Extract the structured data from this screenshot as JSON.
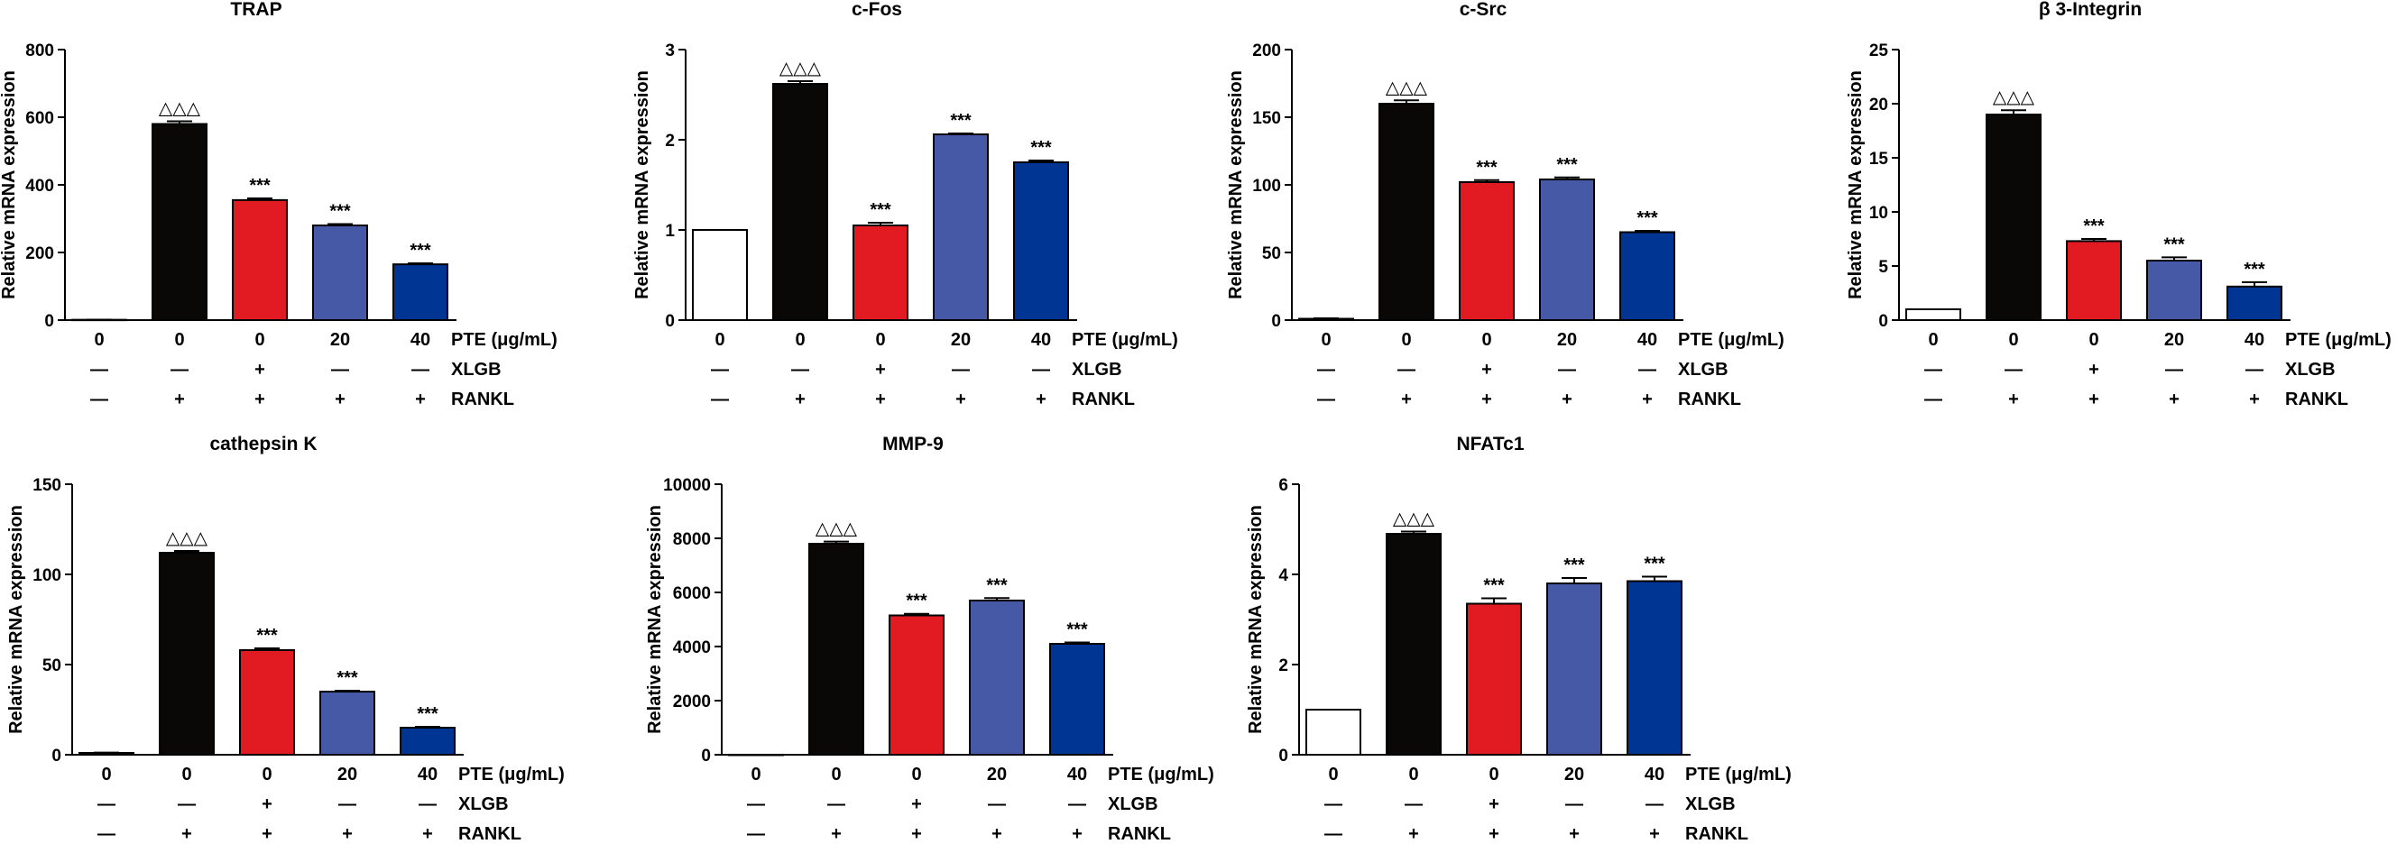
{
  "figure": {
    "description_free": true,
    "colors": {
      "control": "#ffffff",
      "rankl": "#0a0707",
      "xlgb": "#e21b23",
      "pte20": "#4659a6",
      "pte40": "#003594",
      "axis": "#000000"
    }
  },
  "chart_data": [
    {
      "type": "bar",
      "title": "TRAP",
      "ylabel": "Relative mRNA expression",
      "ylim": [
        0,
        800
      ],
      "yticks": [
        0,
        200,
        400,
        600,
        800
      ],
      "ytick_labels": [
        "0",
        "200",
        "400",
        "600",
        "800"
      ],
      "series": [
        {
          "name": "Relative mRNA expression",
          "values": [
            1,
            580,
            355,
            280,
            165
          ],
          "errors": [
            0.5,
            8,
            5,
            4,
            3
          ]
        }
      ],
      "significance": [
        "",
        "△△△",
        "***",
        "***",
        "***"
      ],
      "conditions": [
        {
          "name": "PTE (μg/mL)",
          "values": [
            "0",
            "0",
            "0",
            "20",
            "40"
          ]
        },
        {
          "name": "XLGB",
          "values": [
            "—",
            "—",
            "+",
            "—",
            "—"
          ]
        },
        {
          "name": "RANKL",
          "values": [
            "—",
            "+",
            "+",
            "+",
            "+"
          ]
        }
      ]
    },
    {
      "type": "bar",
      "title": "c-Fos",
      "ylabel": "Relative mRNA expression",
      "ylim": [
        0,
        3
      ],
      "yticks": [
        0,
        1,
        2,
        3
      ],
      "ytick_labels": [
        "0",
        "1",
        "2",
        "3"
      ],
      "series": [
        {
          "name": "Relative mRNA expression",
          "values": [
            1,
            2.62,
            1.05,
            2.06,
            1.75
          ],
          "errors": [
            0,
            0.03,
            0.03,
            0.01,
            0.02
          ]
        }
      ],
      "significance": [
        "",
        "△△△",
        "***",
        "***",
        "***"
      ],
      "conditions": [
        {
          "name": "PTE (μg/mL)",
          "values": [
            "0",
            "0",
            "0",
            "20",
            "40"
          ]
        },
        {
          "name": "XLGB",
          "values": [
            "—",
            "—",
            "+",
            "—",
            "—"
          ]
        },
        {
          "name": "RANKL",
          "values": [
            "—",
            "+",
            "+",
            "+",
            "+"
          ]
        }
      ]
    },
    {
      "type": "bar",
      "title": "c-Src",
      "ylabel": "Relative mRNA expression",
      "ylim": [
        0,
        200
      ],
      "yticks": [
        0,
        50,
        100,
        150,
        200
      ],
      "ytick_labels": [
        "0",
        "50",
        "100",
        "150",
        "200"
      ],
      "series": [
        {
          "name": "Relative mRNA expression",
          "values": [
            1,
            160,
            102,
            104,
            65
          ],
          "errors": [
            0.3,
            2.5,
            1.5,
            1.5,
            1
          ]
        }
      ],
      "significance": [
        "",
        "△△△",
        "***",
        "***",
        "***"
      ],
      "conditions": [
        {
          "name": "PTE (μg/mL)",
          "values": [
            "0",
            "0",
            "0",
            "20",
            "40"
          ]
        },
        {
          "name": "XLGB",
          "values": [
            "—",
            "—",
            "+",
            "—",
            "—"
          ]
        },
        {
          "name": "RANKL",
          "values": [
            "—",
            "+",
            "+",
            "+",
            "+"
          ]
        }
      ]
    },
    {
      "type": "bar",
      "title": "β 3-Integrin",
      "ylabel": "Relative mRNA expression",
      "ylim": [
        0,
        25
      ],
      "yticks": [
        0,
        5,
        10,
        15,
        20,
        25
      ],
      "ytick_labels": [
        "0",
        "5",
        "10",
        "15",
        "20",
        "25"
      ],
      "series": [
        {
          "name": "Relative mRNA expression",
          "values": [
            1,
            19,
            7.3,
            5.5,
            3.1
          ],
          "errors": [
            0,
            0.4,
            0.2,
            0.3,
            0.4
          ]
        }
      ],
      "significance": [
        "",
        "△△△",
        "***",
        "***",
        "***"
      ],
      "conditions": [
        {
          "name": "PTE (μg/mL)",
          "values": [
            "0",
            "0",
            "0",
            "20",
            "40"
          ]
        },
        {
          "name": "XLGB",
          "values": [
            "—",
            "—",
            "+",
            "—",
            "—"
          ]
        },
        {
          "name": "RANKL",
          "values": [
            "—",
            "+",
            "+",
            "+",
            "+"
          ]
        }
      ]
    },
    {
      "type": "bar",
      "title": "cathepsin K",
      "ylabel": "Relative mRNA expression",
      "ylim": [
        0,
        150
      ],
      "yticks": [
        0,
        50,
        100,
        150
      ],
      "ytick_labels": [
        "0",
        "50",
        "100",
        "150"
      ],
      "series": [
        {
          "name": "Relative mRNA expression",
          "values": [
            1,
            112,
            58,
            35,
            15
          ],
          "errors": [
            0.2,
            1,
            1,
            0.5,
            0.5
          ]
        }
      ],
      "significance": [
        "",
        "△△△",
        "***",
        "***",
        "***"
      ],
      "conditions": [
        {
          "name": "PTE (μg/mL)",
          "values": [
            "0",
            "0",
            "0",
            "20",
            "40"
          ]
        },
        {
          "name": "XLGB",
          "values": [
            "—",
            "—",
            "+",
            "—",
            "—"
          ]
        },
        {
          "name": "RANKL",
          "values": [
            "—",
            "+",
            "+",
            "+",
            "+"
          ]
        }
      ]
    },
    {
      "type": "bar",
      "title": "MMP-9",
      "ylabel": "Relative mRNA expression",
      "ylim": [
        0,
        10000
      ],
      "yticks": [
        0,
        2000,
        4000,
        6000,
        8000,
        10000
      ],
      "ytick_labels": [
        "0",
        "2000",
        "4000",
        "6000",
        "8000",
        "10000"
      ],
      "series": [
        {
          "name": "Relative mRNA expression",
          "values": [
            1,
            7800,
            5150,
            5700,
            4100
          ],
          "errors": [
            0,
            80,
            60,
            90,
            50
          ]
        }
      ],
      "significance": [
        "",
        "△△△",
        "***",
        "***",
        "***"
      ],
      "conditions": [
        {
          "name": "PTE (μg/mL)",
          "values": [
            "0",
            "0",
            "0",
            "20",
            "40"
          ]
        },
        {
          "name": "XLGB",
          "values": [
            "—",
            "—",
            "+",
            "—",
            "—"
          ]
        },
        {
          "name": "RANKL",
          "values": [
            "—",
            "+",
            "+",
            "+",
            "+"
          ]
        }
      ]
    },
    {
      "type": "bar",
      "title": "NFATc1",
      "ylabel": "Relative mRNA expression",
      "ylim": [
        0,
        6
      ],
      "yticks": [
        0,
        2,
        4,
        6
      ],
      "ytick_labels": [
        "0",
        "2",
        "4",
        "6"
      ],
      "series": [
        {
          "name": "Relative mRNA expression",
          "values": [
            1,
            4.9,
            3.35,
            3.8,
            3.85
          ],
          "errors": [
            0,
            0.05,
            0.12,
            0.12,
            0.1
          ]
        }
      ],
      "significance": [
        "",
        "△△△",
        "***",
        "***",
        "***"
      ],
      "conditions": [
        {
          "name": "PTE (μg/mL)",
          "values": [
            "0",
            "0",
            "0",
            "20",
            "40"
          ]
        },
        {
          "name": "XLGB",
          "values": [
            "—",
            "—",
            "+",
            "—",
            "—"
          ]
        },
        {
          "name": "RANKL",
          "values": [
            "—",
            "+",
            "+",
            "+",
            "+"
          ]
        }
      ]
    }
  ]
}
